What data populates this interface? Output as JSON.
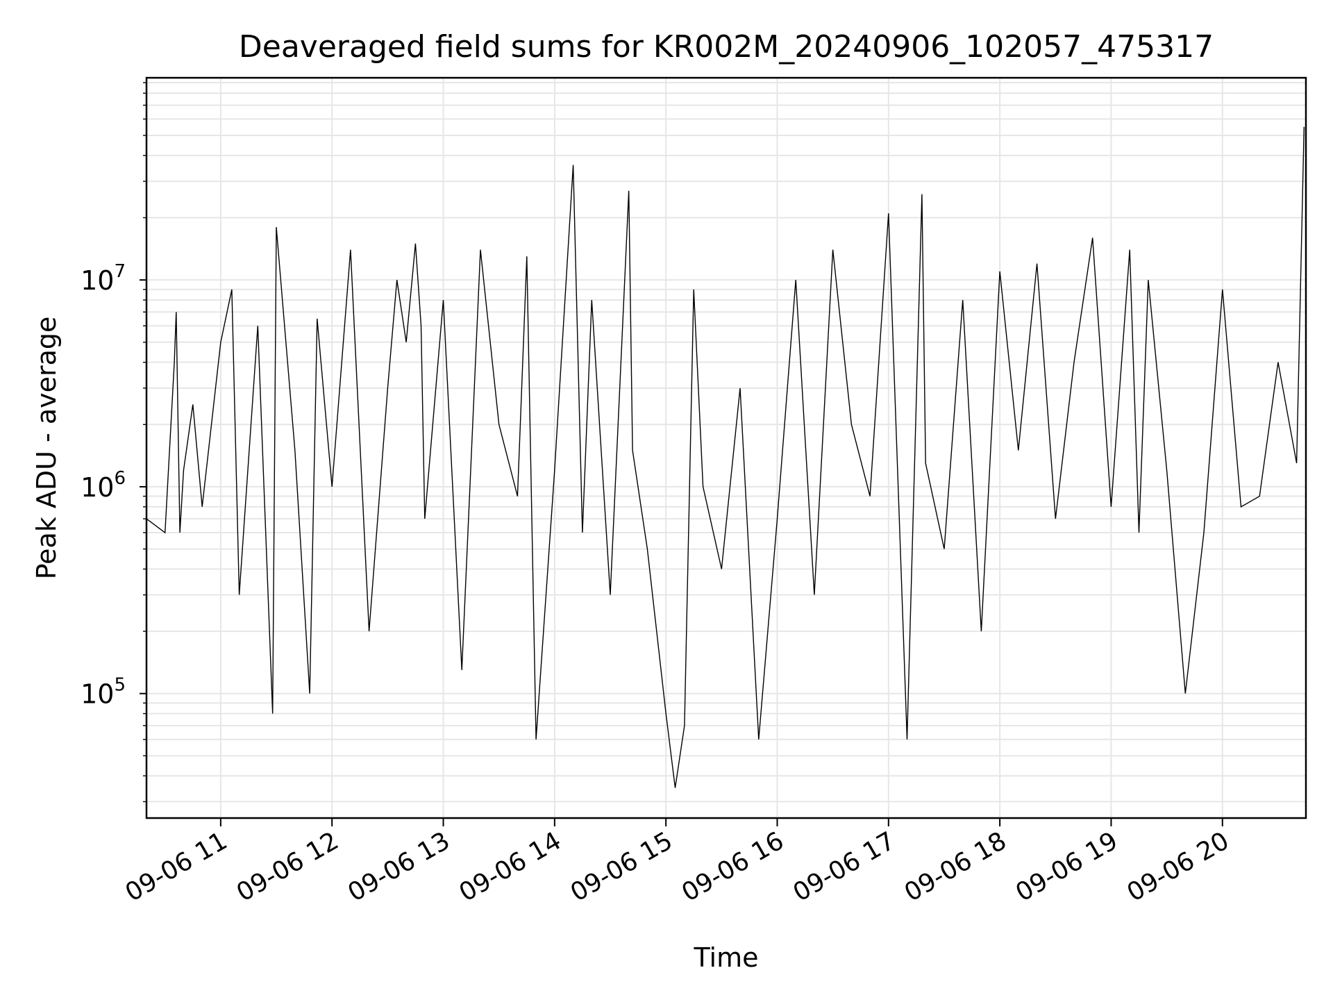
{
  "chart_data": {
    "type": "line",
    "title": "Deaveraged field sums for KR002M_20240906_102057_475317",
    "xlabel": "Time",
    "ylabel": "Peak ADU - average",
    "yscale": "log",
    "ylim": [
      25000,
      95000000
    ],
    "xlim": [
      "2024-09-06 10:20",
      "2024-09-06 20:45"
    ],
    "x_ticks": [
      "09-06 11",
      "09-06 12",
      "09-06 13",
      "09-06 14",
      "09-06 15",
      "09-06 16",
      "09-06 17",
      "09-06 18",
      "09-06 19",
      "09-06 20"
    ],
    "y_ticks": [
      {
        "value": 100000,
        "base": "10",
        "exp": "5"
      },
      {
        "value": 1000000,
        "base": "10",
        "exp": "6"
      },
      {
        "value": 10000000,
        "base": "10",
        "exp": "7"
      }
    ],
    "grid": true,
    "line_color": "#000000",
    "grid_color": "#e6e6e6",
    "series": [
      {
        "x": [
          "10:20",
          "10:30",
          "10:35",
          "10:36",
          "10:38",
          "10:40",
          "10:45",
          "10:50",
          "11:00",
          "11:06",
          "11:10",
          "11:20",
          "11:28",
          "11:30",
          "11:40",
          "11:48",
          "11:52",
          "12:00",
          "12:10",
          "12:20",
          "12:30",
          "12:35",
          "12:40",
          "12:45",
          "12:48",
          "12:50",
          "13:00",
          "13:10",
          "13:20",
          "13:30",
          "13:40",
          "13:45",
          "13:50",
          "14:00",
          "14:10",
          "14:15",
          "14:20",
          "14:30",
          "14:40",
          "14:42",
          "14:50",
          "15:00",
          "15:05",
          "15:10",
          "15:15",
          "15:20",
          "15:30",
          "15:40",
          "15:50",
          "16:00",
          "16:10",
          "16:20",
          "16:30",
          "16:40",
          "16:50",
          "17:00",
          "17:10",
          "17:18",
          "17:20",
          "17:30",
          "17:40",
          "17:50",
          "18:00",
          "18:10",
          "18:20",
          "18:30",
          "18:40",
          "18:50",
          "19:00",
          "19:10",
          "19:15",
          "19:20",
          "19:30",
          "19:40",
          "19:50",
          "20:00",
          "20:10",
          "20:20",
          "20:30",
          "20:40",
          "20:44"
        ],
        "y": [
          700000,
          600000,
          4000000,
          7000000,
          600000,
          1200000,
          2500000,
          800000,
          5000000,
          9000000,
          300000,
          6000000,
          80000,
          18000000,
          1500000,
          100000,
          6500000,
          1000000,
          14000000,
          200000,
          3000000,
          10000000,
          5000000,
          15000000,
          6000000,
          700000,
          8000000,
          130000,
          14000000,
          2000000,
          900000,
          13000000,
          60000,
          1200000,
          36000000,
          600000,
          8000000,
          300000,
          27000000,
          1500000,
          500000,
          80000,
          35000,
          70000,
          9000000,
          1000000,
          400000,
          3000000,
          60000,
          700000,
          10000000,
          300000,
          14000000,
          2000000,
          900000,
          21000000,
          60000,
          26000000,
          1300000,
          500000,
          8000000,
          200000,
          11000000,
          1500000,
          12000000,
          700000,
          4000000,
          16000000,
          800000,
          14000000,
          600000,
          10000000,
          1200000,
          100000,
          600000,
          9000000,
          800000,
          900000,
          4000000,
          1300000,
          55000000
        ]
      }
    ]
  }
}
